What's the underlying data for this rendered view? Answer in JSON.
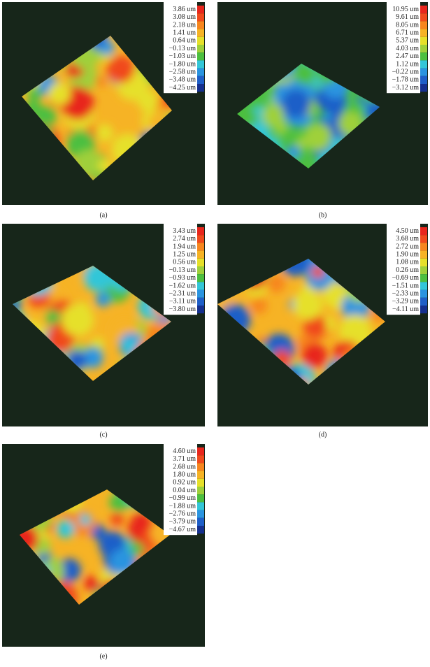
{
  "panels": [
    {
      "scale": [
        "3.86 um",
        "3.08 um",
        "2.18 um",
        "1.41 um",
        "0.64 um",
        "−0.13 um",
        "−1.03 um",
        "−1.80 um",
        "−2.58 um",
        "−3.48 um",
        "−4.25 um"
      ],
      "caption": "(a)"
    },
    {
      "scale": [
        "10.95 um",
        "9.61 um",
        "8.05 um",
        "6.71 um",
        "5.37 um",
        "4.03 um",
        "2.47 um",
        "1.12 um",
        "−0.22 um",
        "−1.78 um",
        "−3.12 um"
      ],
      "caption": "(b)"
    },
    {
      "scale": [
        "3.43 um",
        "2.74 um",
        "1.94 um",
        "1.25 um",
        "0.56 um",
        "−0.13 um",
        "−0.93 um",
        "−1.62 um",
        "−2.31 um",
        "−3.11 um",
        "−3.80 um"
      ],
      "caption": "(c)"
    },
    {
      "scale": [
        "4.50 um",
        "3.68 um",
        "2.72 um",
        "1.90 um",
        "1.08 um",
        "0.26 um",
        "−0.69 um",
        "−1.51 um",
        "−2.33 um",
        "−3.29 um",
        "−4.11 um"
      ],
      "caption": "(d)"
    },
    {
      "scale": [
        "4.60 um",
        "3.71 um",
        "2.68 um",
        "1.80 um",
        "0.92 um",
        "0.04 um",
        "−0.99 um",
        "−1.88 um",
        "−2.76 um",
        "−3.79 um",
        "−4.67 um"
      ],
      "caption": "(e)"
    }
  ]
}
